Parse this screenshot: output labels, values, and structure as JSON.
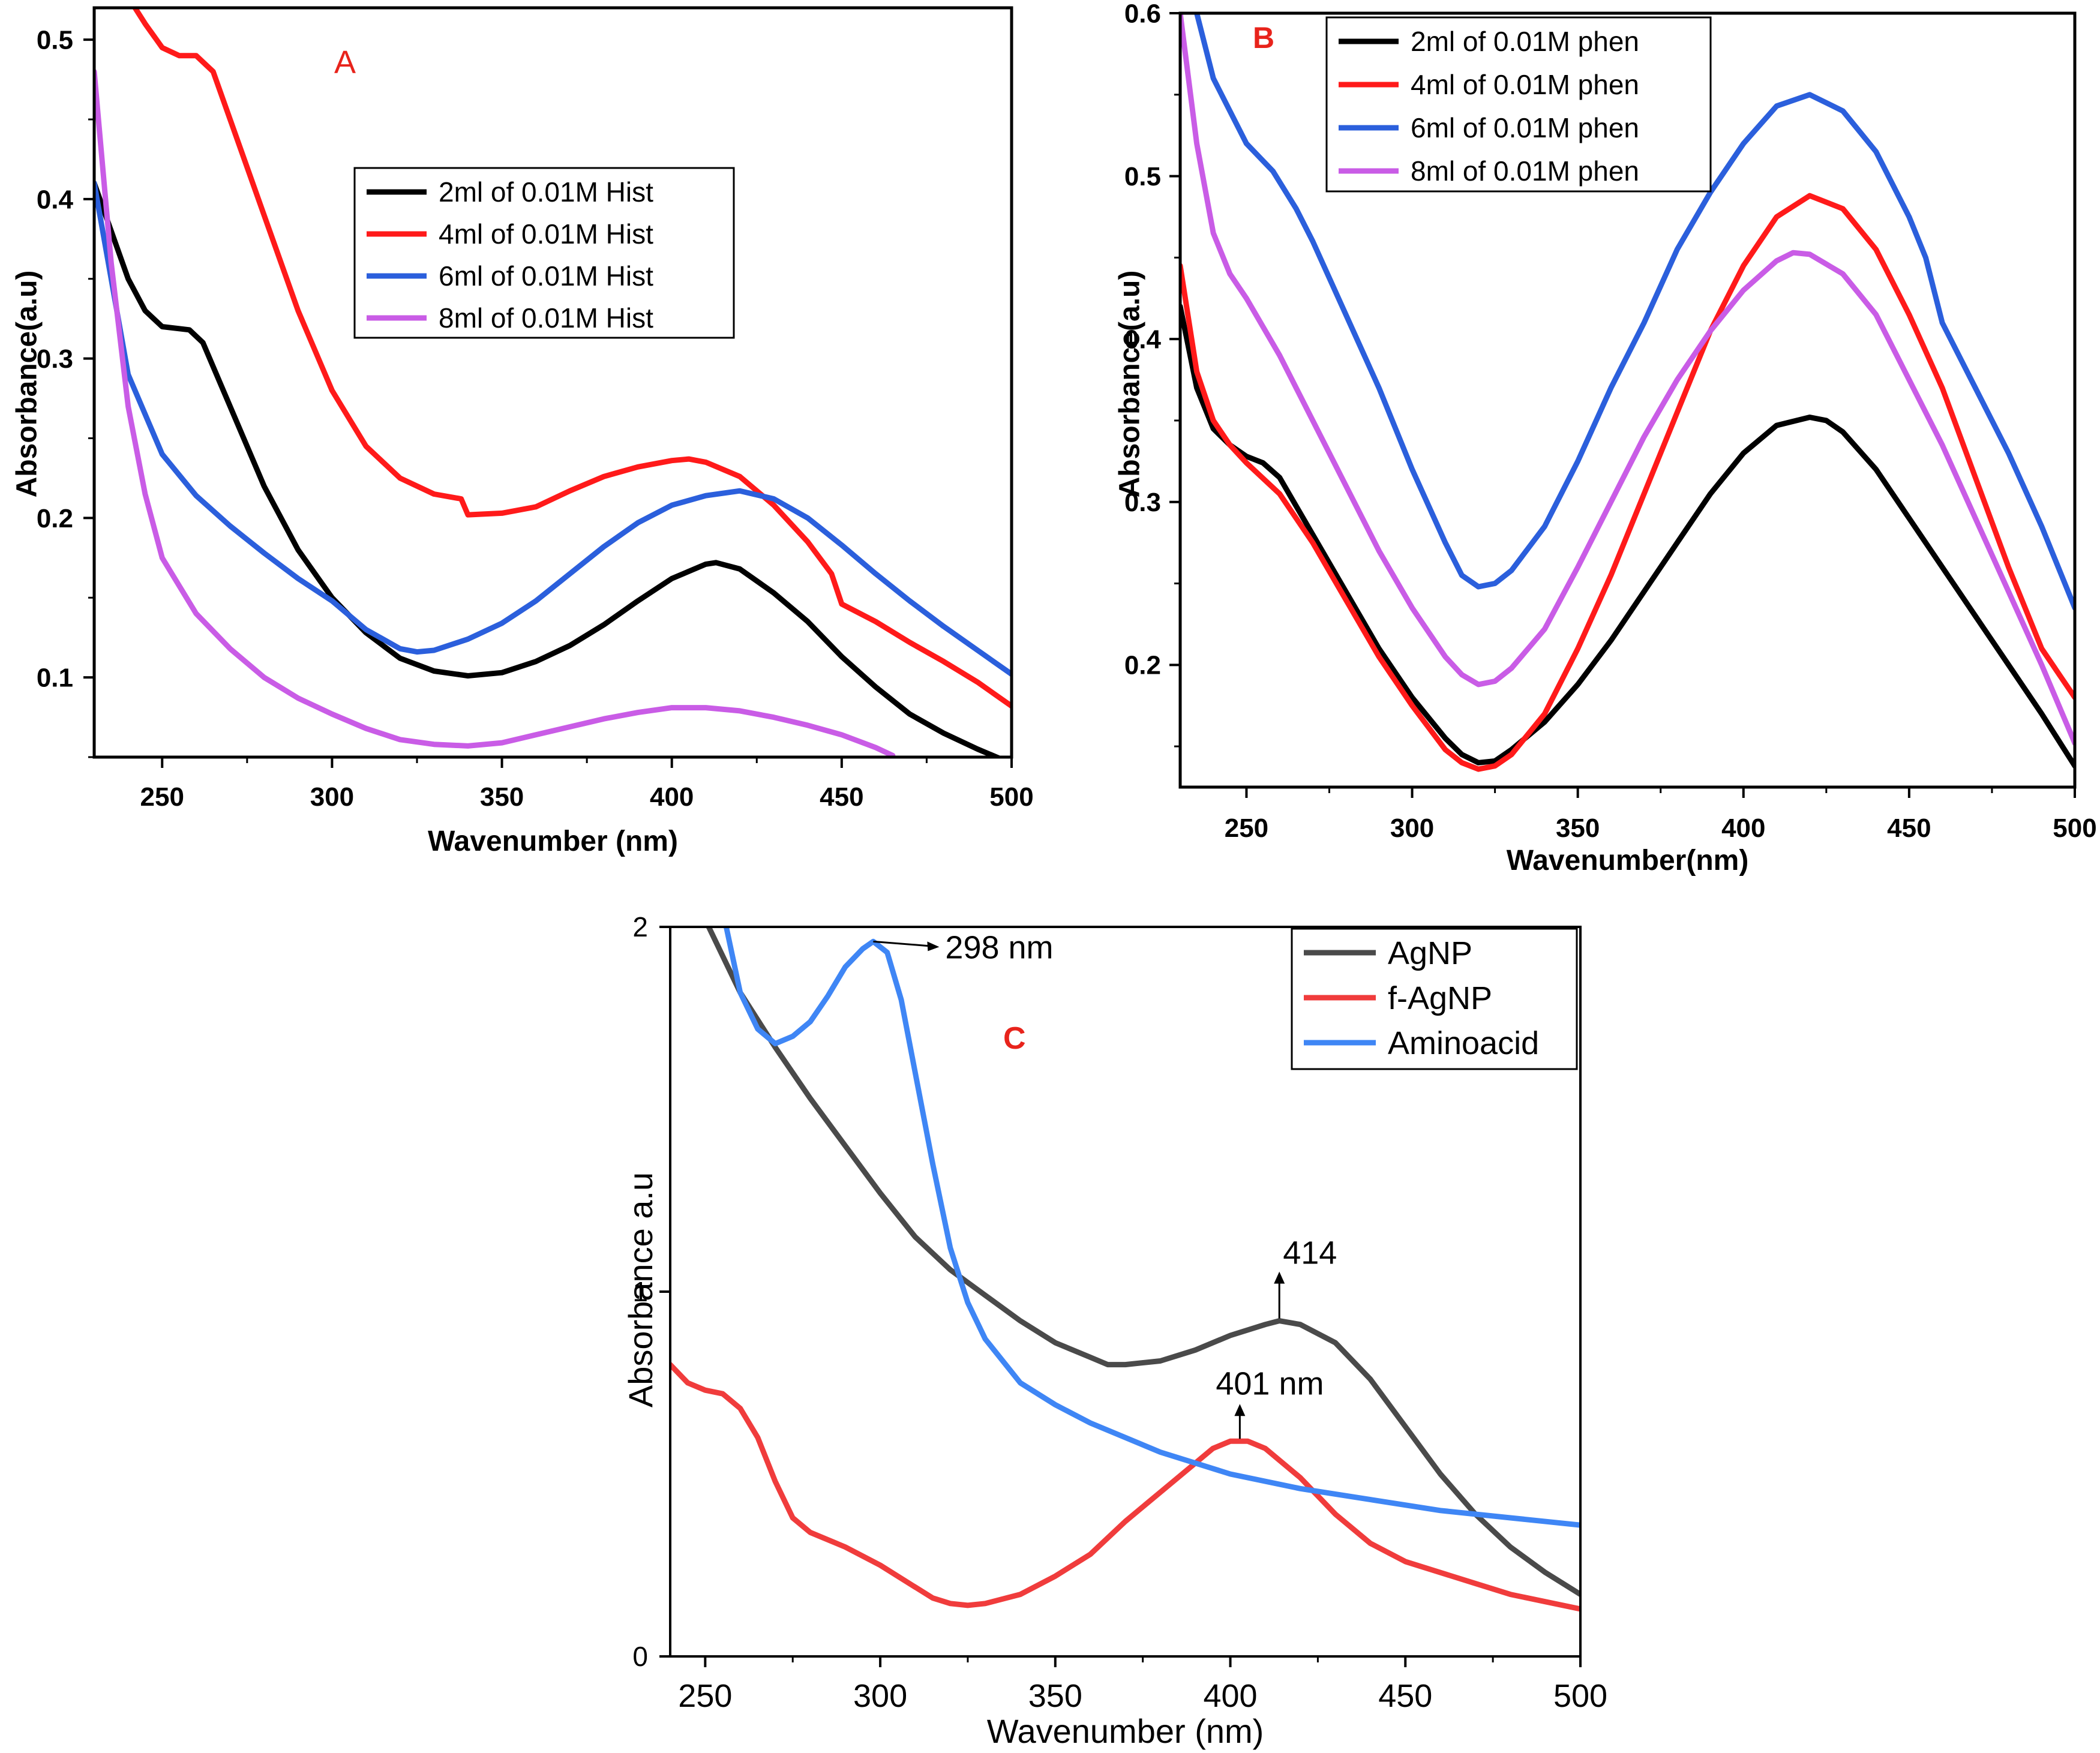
{
  "chart_data": [
    {
      "panel": "A",
      "type": "line",
      "title": "A",
      "title_color": "#e8231b",
      "xlabel": "Wavenumber (nm)",
      "ylabel": "Absorbance(a.u)",
      "xlim": [
        230,
        500
      ],
      "ylim": [
        0.05,
        0.52
      ],
      "xticks": [
        250,
        300,
        350,
        400,
        450,
        500
      ],
      "xtick_labels": [
        "250",
        "300",
        "350",
        "400",
        "450",
        "500"
      ],
      "yticks": [
        0.1,
        0.2,
        0.3,
        0.4,
        0.5
      ],
      "ytick_labels": [
        "0.1",
        "0.2",
        "0.3",
        "0.4",
        "0.5"
      ],
      "legend": [
        "2ml of 0.01M Hist",
        "4ml of 0.01M Hist",
        "6ml of 0.01M Hist",
        "8ml of 0.01M Hist"
      ],
      "legend_position": "center-right",
      "series": [
        {
          "name": "2ml of 0.01M Hist",
          "color": "#000000",
          "x": [
            230,
            240,
            245,
            250,
            258,
            262,
            270,
            280,
            290,
            300,
            310,
            320,
            330,
            340,
            350,
            360,
            370,
            380,
            390,
            400,
            410,
            413,
            420,
            430,
            440,
            450,
            460,
            470,
            480,
            490,
            500
          ],
          "y": [
            0.41,
            0.35,
            0.33,
            0.32,
            0.318,
            0.31,
            0.27,
            0.22,
            0.18,
            0.15,
            0.128,
            0.112,
            0.104,
            0.101,
            0.103,
            0.11,
            0.12,
            0.133,
            0.148,
            0.162,
            0.171,
            0.172,
            0.168,
            0.153,
            0.135,
            0.113,
            0.094,
            0.077,
            0.065,
            0.055,
            0.046
          ]
        },
        {
          "name": "4ml of 0.01M Hist",
          "color": "#ff1a1a",
          "x": [
            242,
            245,
            250,
            255,
            260,
            265,
            270,
            280,
            290,
            300,
            310,
            320,
            330,
            338,
            340,
            350,
            360,
            370,
            380,
            390,
            400,
            405,
            410,
            420,
            430,
            440,
            447,
            450,
            460,
            470,
            480,
            490,
            500
          ],
          "y": [
            0.52,
            0.51,
            0.495,
            0.49,
            0.49,
            0.48,
            0.45,
            0.39,
            0.33,
            0.28,
            0.245,
            0.225,
            0.215,
            0.212,
            0.202,
            0.203,
            0.207,
            0.217,
            0.226,
            0.232,
            0.236,
            0.237,
            0.235,
            0.226,
            0.208,
            0.185,
            0.165,
            0.146,
            0.135,
            0.122,
            0.11,
            0.097,
            0.082
          ]
        },
        {
          "name": "6ml of 0.01M Hist",
          "color": "#2b5fdc",
          "x": [
            230,
            240,
            250,
            260,
            270,
            280,
            290,
            300,
            310,
            320,
            325,
            330,
            340,
            350,
            360,
            370,
            380,
            390,
            400,
            410,
            420,
            430,
            440,
            450,
            460,
            470,
            480,
            490,
            500
          ],
          "y": [
            0.41,
            0.29,
            0.24,
            0.214,
            0.195,
            0.178,
            0.162,
            0.148,
            0.13,
            0.118,
            0.116,
            0.117,
            0.124,
            0.134,
            0.148,
            0.165,
            0.182,
            0.197,
            0.208,
            0.214,
            0.217,
            0.212,
            0.2,
            0.183,
            0.165,
            0.148,
            0.132,
            0.117,
            0.102
          ]
        },
        {
          "name": "8ml of 0.01M Hist",
          "color": "#c95ce6",
          "x": [
            230,
            235,
            240,
            245,
            250,
            260,
            270,
            280,
            290,
            300,
            310,
            320,
            330,
            340,
            350,
            360,
            370,
            380,
            390,
            400,
            410,
            420,
            430,
            440,
            450,
            460,
            465
          ],
          "y": [
            0.48,
            0.36,
            0.27,
            0.215,
            0.175,
            0.14,
            0.118,
            0.1,
            0.087,
            0.077,
            0.068,
            0.061,
            0.058,
            0.057,
            0.059,
            0.064,
            0.069,
            0.074,
            0.078,
            0.081,
            0.081,
            0.079,
            0.075,
            0.07,
            0.064,
            0.056,
            0.051
          ]
        }
      ]
    },
    {
      "panel": "B",
      "type": "line",
      "title": "B",
      "title_color": "#e8231b",
      "xlabel": "Wavenumber(nm)",
      "ylabel": "Absorbance(a.u)",
      "xlim": [
        230,
        500
      ],
      "ylim": [
        0.125,
        0.6
      ],
      "xticks": [
        250,
        300,
        350,
        400,
        450,
        500
      ],
      "xtick_labels": [
        "250",
        "300",
        "350",
        "400",
        "450",
        "500"
      ],
      "yticks": [
        0.2,
        0.3,
        0.4,
        0.5,
        0.6
      ],
      "ytick_labels": [
        "0.2",
        "0.3",
        "0.4",
        "0.5",
        "0.6"
      ],
      "legend": [
        "2ml of 0.01M phen",
        "4ml of 0.01M phen",
        "6ml of 0.01M phen",
        "8ml of 0.01M phen"
      ],
      "legend_position": "top-center",
      "series": [
        {
          "name": "2ml of 0.01M phen",
          "color": "#000000",
          "x": [
            230,
            235,
            240,
            245,
            250,
            255,
            260,
            270,
            280,
            290,
            300,
            310,
            315,
            320,
            325,
            330,
            340,
            350,
            360,
            370,
            380,
            390,
            400,
            410,
            420,
            425,
            430,
            440,
            450,
            460,
            470,
            480,
            490,
            500
          ],
          "y": [
            0.42,
            0.37,
            0.345,
            0.335,
            0.328,
            0.324,
            0.315,
            0.28,
            0.245,
            0.21,
            0.18,
            0.155,
            0.145,
            0.14,
            0.141,
            0.148,
            0.165,
            0.188,
            0.215,
            0.245,
            0.275,
            0.305,
            0.33,
            0.347,
            0.352,
            0.35,
            0.343,
            0.32,
            0.29,
            0.26,
            0.23,
            0.2,
            0.17,
            0.138
          ]
        },
        {
          "name": "4ml of 0.01M phen",
          "color": "#ff1a1a",
          "x": [
            230,
            235,
            240,
            245,
            250,
            260,
            270,
            280,
            290,
            300,
            310,
            315,
            320,
            325,
            330,
            340,
            350,
            360,
            370,
            380,
            390,
            400,
            410,
            420,
            430,
            440,
            450,
            460,
            470,
            480,
            490,
            500
          ],
          "y": [
            0.445,
            0.38,
            0.35,
            0.335,
            0.324,
            0.305,
            0.275,
            0.24,
            0.205,
            0.175,
            0.148,
            0.14,
            0.136,
            0.138,
            0.145,
            0.17,
            0.21,
            0.255,
            0.305,
            0.355,
            0.405,
            0.445,
            0.475,
            0.488,
            0.48,
            0.455,
            0.415,
            0.37,
            0.315,
            0.26,
            0.21,
            0.18
          ]
        },
        {
          "name": "6ml of 0.01M phen",
          "color": "#2b5fdc",
          "x": [
            235,
            240,
            250,
            258,
            265,
            270,
            280,
            290,
            300,
            310,
            315,
            320,
            325,
            330,
            340,
            350,
            360,
            370,
            380,
            390,
            400,
            410,
            420,
            430,
            440,
            450,
            455,
            460,
            470,
            480,
            490,
            500
          ],
          "y": [
            0.6,
            0.56,
            0.52,
            0.503,
            0.48,
            0.46,
            0.415,
            0.37,
            0.32,
            0.275,
            0.255,
            0.248,
            0.25,
            0.258,
            0.285,
            0.325,
            0.37,
            0.41,
            0.455,
            0.49,
            0.52,
            0.543,
            0.55,
            0.54,
            0.515,
            0.475,
            0.45,
            0.41,
            0.37,
            0.33,
            0.285,
            0.235
          ]
        },
        {
          "name": "8ml of 0.01M phen",
          "color": "#c95ce6",
          "x": [
            230,
            235,
            240,
            245,
            250,
            260,
            270,
            280,
            290,
            300,
            310,
            315,
            320,
            325,
            330,
            340,
            350,
            360,
            370,
            380,
            390,
            400,
            410,
            415,
            420,
            430,
            440,
            450,
            460,
            470,
            480,
            490,
            500
          ],
          "y": [
            0.6,
            0.52,
            0.465,
            0.44,
            0.425,
            0.39,
            0.35,
            0.31,
            0.27,
            0.235,
            0.205,
            0.194,
            0.188,
            0.19,
            0.198,
            0.222,
            0.26,
            0.3,
            0.34,
            0.375,
            0.405,
            0.43,
            0.448,
            0.453,
            0.452,
            0.44,
            0.415,
            0.375,
            0.335,
            0.29,
            0.245,
            0.2,
            0.152
          ]
        }
      ]
    },
    {
      "panel": "C",
      "type": "line",
      "title": "C",
      "title_color": "#e8231b",
      "xlabel": "Wavenumber (nm)",
      "ylabel": "Absorbance a.u",
      "xlim": [
        240,
        500
      ],
      "ylim": [
        0,
        2
      ],
      "xticks": [
        250,
        300,
        350,
        400,
        450,
        500
      ],
      "xtick_labels": [
        "250",
        "300",
        "350",
        "400",
        "450",
        "500"
      ],
      "yticks": [
        0,
        1,
        2
      ],
      "ytick_labels": [
        "0",
        "1",
        "2"
      ],
      "legend": [
        "AgNP",
        "f-AgNP",
        "Aminoacid"
      ],
      "legend_position": "top-right",
      "annotations": [
        {
          "text": "298 nm",
          "x": 298,
          "y": 1.96
        },
        {
          "text": "414",
          "x": 414,
          "y": 0.92
        },
        {
          "text": "401 nm",
          "x": 401,
          "y": 0.59
        }
      ],
      "series": [
        {
          "name": "AgNP",
          "color": "#4a4a4a",
          "x": [
            251,
            260,
            270,
            280,
            290,
            300,
            310,
            320,
            330,
            340,
            350,
            360,
            365,
            370,
            380,
            390,
            400,
            410,
            414,
            420,
            430,
            440,
            450,
            460,
            470,
            480,
            490,
            500
          ],
          "y": [
            2.0,
            1.82,
            1.67,
            1.53,
            1.4,
            1.27,
            1.15,
            1.06,
            0.99,
            0.92,
            0.86,
            0.82,
            0.8,
            0.8,
            0.81,
            0.84,
            0.88,
            0.91,
            0.92,
            0.91,
            0.86,
            0.76,
            0.63,
            0.5,
            0.39,
            0.3,
            0.23,
            0.17
          ]
        },
        {
          "name": "f-AgNP",
          "color": "#f03c3c",
          "x": [
            240,
            245,
            250,
            255,
            260,
            265,
            270,
            275,
            280,
            290,
            300,
            310,
            315,
            320,
            325,
            330,
            340,
            350,
            360,
            370,
            380,
            390,
            395,
            400,
            405,
            410,
            420,
            430,
            440,
            450,
            460,
            470,
            480,
            490,
            500
          ],
          "y": [
            0.8,
            0.75,
            0.73,
            0.72,
            0.68,
            0.6,
            0.48,
            0.38,
            0.34,
            0.3,
            0.25,
            0.19,
            0.16,
            0.145,
            0.14,
            0.145,
            0.17,
            0.22,
            0.28,
            0.37,
            0.45,
            0.53,
            0.57,
            0.59,
            0.59,
            0.57,
            0.49,
            0.39,
            0.31,
            0.26,
            0.23,
            0.2,
            0.17,
            0.15,
            0.13
          ]
        },
        {
          "name": "Aminoacid",
          "color": "#3f86f5",
          "x": [
            256,
            260,
            265,
            270,
            275,
            280,
            285,
            290,
            295,
            298,
            302,
            306,
            310,
            315,
            320,
            325,
            330,
            340,
            350,
            360,
            380,
            400,
            420,
            440,
            460,
            480,
            500
          ],
          "y": [
            2.0,
            1.82,
            1.72,
            1.68,
            1.7,
            1.74,
            1.81,
            1.89,
            1.94,
            1.96,
            1.93,
            1.8,
            1.6,
            1.35,
            1.12,
            0.97,
            0.87,
            0.75,
            0.69,
            0.64,
            0.56,
            0.5,
            0.46,
            0.43,
            0.4,
            0.38,
            0.36
          ]
        }
      ]
    }
  ]
}
